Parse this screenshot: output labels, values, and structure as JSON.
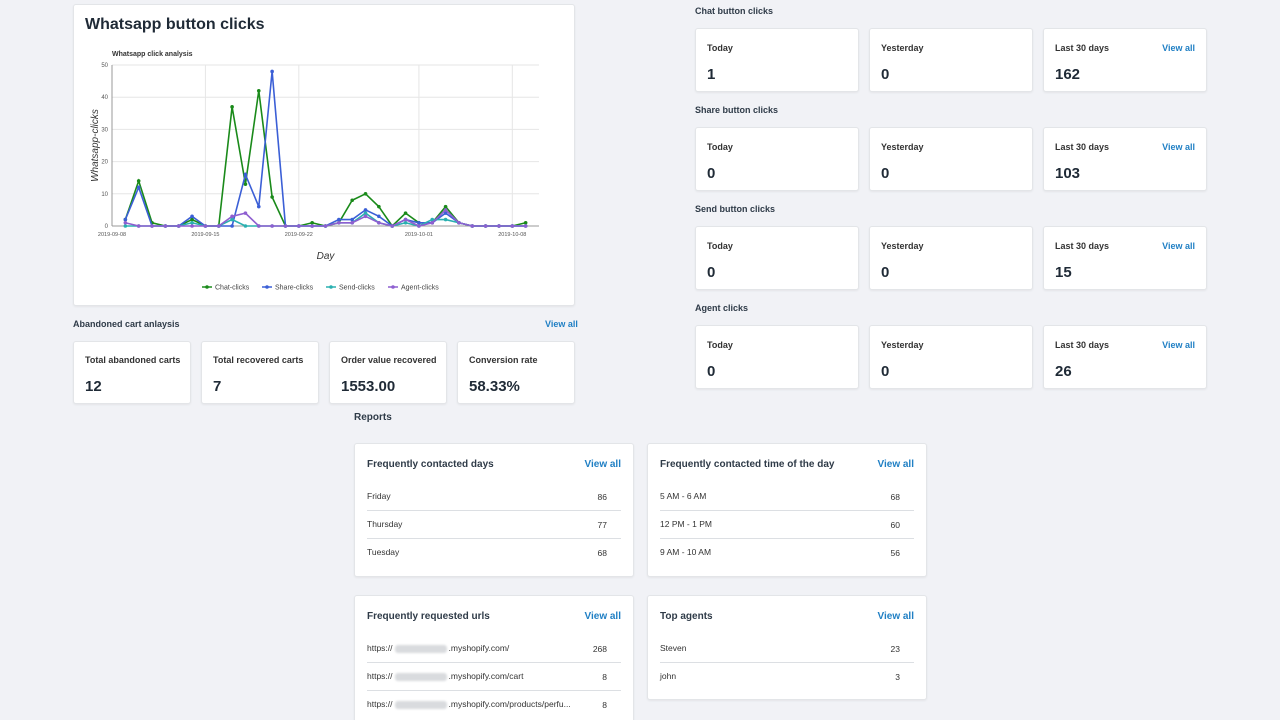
{
  "chart_card": {
    "title": "Whatsapp button clicks"
  },
  "chart_data": {
    "type": "line",
    "title": "Whatsapp click analysis",
    "xlabel": "Day",
    "ylabel": "Whatsapp-clicks",
    "ylim": [
      0,
      50
    ],
    "yticks": [
      0,
      10,
      20,
      30,
      40,
      50
    ],
    "xtick_labels": [
      "2019-09-08",
      "2019-09-15",
      "2019-09-22",
      "2019-10-01",
      "2019-10-08"
    ],
    "x": [
      "2019-09-09",
      "2019-09-10",
      "2019-09-11",
      "2019-09-12",
      "2019-09-13",
      "2019-09-14",
      "2019-09-15",
      "2019-09-16",
      "2019-09-17",
      "2019-09-18",
      "2019-09-19",
      "2019-09-20",
      "2019-09-21",
      "2019-09-22",
      "2019-09-23",
      "2019-09-24",
      "2019-09-25",
      "2019-09-26",
      "2019-09-27",
      "2019-09-28",
      "2019-09-29",
      "2019-09-30",
      "2019-10-01",
      "2019-10-02",
      "2019-10-03",
      "2019-10-04",
      "2019-10-05",
      "2019-10-06",
      "2019-10-07",
      "2019-10-08",
      "2019-10-09"
    ],
    "grid": true,
    "legend_position": "bottom",
    "series": [
      {
        "name": "Chat-clicks",
        "color": "#1a8a1a",
        "values": [
          2,
          14,
          1,
          0,
          0,
          2,
          0,
          0,
          37,
          13,
          42,
          9,
          0,
          0,
          1,
          0,
          1,
          8,
          10,
          6,
          0,
          4,
          1,
          1,
          6,
          1,
          0,
          0,
          0,
          0,
          1
        ]
      },
      {
        "name": "Share-clicks",
        "color": "#3b5fd6",
        "values": [
          2,
          12,
          0,
          0,
          0,
          3,
          0,
          0,
          0,
          16,
          6,
          48,
          0,
          0,
          0,
          0,
          2,
          2,
          5,
          3,
          0,
          2,
          1,
          1,
          4,
          1,
          0,
          0,
          0,
          0,
          0
        ]
      },
      {
        "name": "Send-clicks",
        "color": "#2ab0b0",
        "values": [
          0,
          0,
          0,
          0,
          0,
          1,
          0,
          0,
          2,
          0,
          0,
          0,
          0,
          0,
          0,
          0,
          1,
          1,
          4,
          1,
          0,
          1,
          0,
          2,
          2,
          1,
          0,
          0,
          0,
          0,
          0
        ]
      },
      {
        "name": "Agent-clicks",
        "color": "#8e5fd0",
        "values": [
          1,
          0,
          0,
          0,
          0,
          0,
          0,
          0,
          3,
          4,
          0,
          0,
          0,
          0,
          0,
          0,
          1,
          1,
          3,
          1,
          0,
          2,
          0,
          1,
          5,
          1,
          0,
          0,
          0,
          0,
          0
        ]
      }
    ]
  },
  "abandoned": {
    "title": "Abandoned cart anlaysis",
    "view_all": "View all",
    "stats": [
      {
        "label": "Total abandoned carts",
        "value": "12"
      },
      {
        "label": "Total recovered carts",
        "value": "7"
      },
      {
        "label": "Order value recovered",
        "value": "1553.00"
      },
      {
        "label": "Conversion rate",
        "value": "58.33%"
      }
    ]
  },
  "clicks": [
    {
      "title": "Chat button clicks",
      "today_label": "Today",
      "today": "1",
      "yesterday_label": "Yesterday",
      "yesterday": "0",
      "last30_label": "Last 30 days",
      "last30": "162",
      "view_all": "View all"
    },
    {
      "title": "Share button clicks",
      "today_label": "Today",
      "today": "0",
      "yesterday_label": "Yesterday",
      "yesterday": "0",
      "last30_label": "Last 30 days",
      "last30": "103",
      "view_all": "View all"
    },
    {
      "title": "Send button clicks",
      "today_label": "Today",
      "today": "0",
      "yesterday_label": "Yesterday",
      "yesterday": "0",
      "last30_label": "Last 30 days",
      "last30": "15",
      "view_all": "View all"
    },
    {
      "title": "Agent clicks",
      "today_label": "Today",
      "today": "0",
      "yesterday_label": "Yesterday",
      "yesterday": "0",
      "last30_label": "Last 30 days",
      "last30": "26",
      "view_all": "View all"
    }
  ],
  "reports": {
    "title": "Reports",
    "days": {
      "title": "Frequently contacted days",
      "view_all": "View all",
      "rows": [
        {
          "name": "Friday",
          "count": "86"
        },
        {
          "name": "Thursday",
          "count": "77"
        },
        {
          "name": "Tuesday",
          "count": "68"
        }
      ]
    },
    "times": {
      "title": "Frequently contacted time of the day",
      "view_all": "View all",
      "rows": [
        {
          "name": "5 AM - 6 AM",
          "count": "68"
        },
        {
          "name": "12 PM - 1 PM",
          "count": "60"
        },
        {
          "name": "9 AM - 10 AM",
          "count": "56"
        }
      ]
    },
    "urls": {
      "title": "Frequently requested urls",
      "view_all": "View all",
      "rows": [
        {
          "prefix": "https://",
          "suffix": ".myshopify.com/",
          "count": "268"
        },
        {
          "prefix": "https://",
          "suffix": ".myshopify.com/cart",
          "count": "8"
        },
        {
          "prefix": "https://",
          "suffix": ".myshopify.com/products/perfu...",
          "count": "8"
        }
      ]
    },
    "agents": {
      "title": "Top agents",
      "view_all": "View all",
      "rows": [
        {
          "name": "Steven",
          "count": "23"
        },
        {
          "name": "john",
          "count": "3"
        }
      ]
    }
  }
}
